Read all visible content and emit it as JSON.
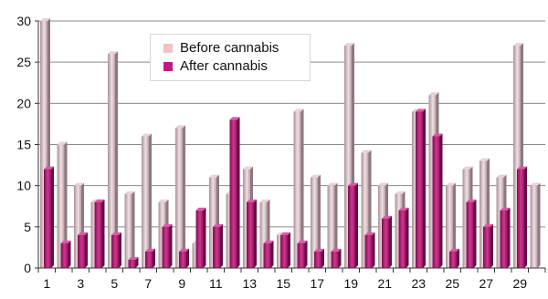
{
  "chart_data": {
    "type": "bar",
    "categories": [
      "1",
      "2",
      "3",
      "4",
      "5",
      "6",
      "7",
      "8",
      "9",
      "10",
      "11",
      "12",
      "13",
      "14",
      "15",
      "16",
      "17",
      "18",
      "19",
      "20",
      "21",
      "22",
      "23",
      "24",
      "25",
      "26",
      "27",
      "28",
      "29",
      "30"
    ],
    "x_tick_labels": [
      "1",
      "3",
      "5",
      "7",
      "9",
      "11",
      "13",
      "15",
      "17",
      "19",
      "21",
      "23",
      "25",
      "27",
      "29"
    ],
    "y_ticks": [
      "0",
      "5",
      "10",
      "15",
      "20",
      "25",
      "30"
    ],
    "ylim": [
      0,
      30
    ],
    "grid": true,
    "legend_position": "top-center",
    "series": [
      {
        "name": "Before cannabis",
        "color": "#c9aeb3",
        "values": [
          30,
          15,
          10,
          8,
          26,
          9,
          16,
          8,
          17,
          3,
          11,
          9,
          12,
          8,
          4,
          19,
          11,
          10,
          27,
          14,
          10,
          9,
          19,
          21,
          10,
          12,
          13,
          11,
          27,
          10
        ]
      },
      {
        "name": "After cannabis",
        "color": "#c01a82",
        "values": [
          12,
          3,
          4,
          8,
          4,
          1,
          2,
          5,
          2,
          7,
          5,
          18,
          8,
          3,
          4,
          3,
          2,
          2,
          10,
          4,
          6,
          7,
          19,
          16,
          2,
          8,
          5,
          7,
          12,
          null
        ]
      }
    ]
  }
}
